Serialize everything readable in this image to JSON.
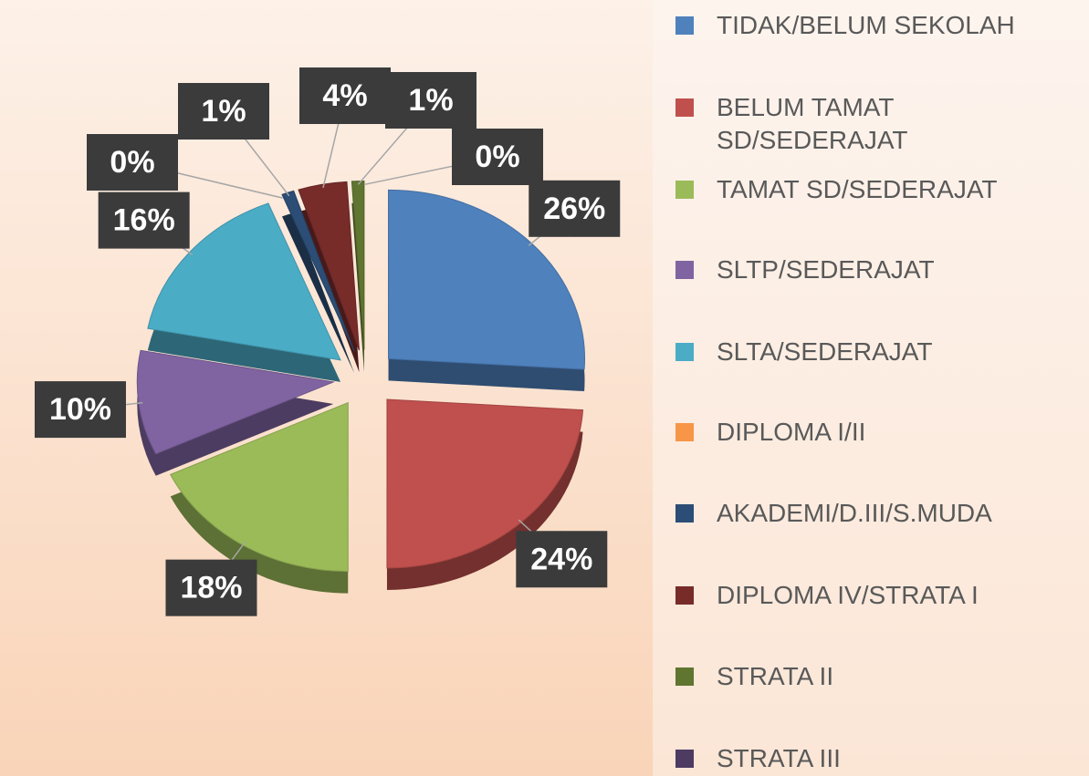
{
  "chart_data": {
    "type": "pie",
    "categories": [
      "TIDAK/BELUM SEKOLAH",
      "BELUM TAMAT SD/SEDERAJAT",
      "TAMAT SD/SEDERAJAT",
      "SLTP/SEDERAJAT",
      "SLTA/SEDERAJAT",
      "DIPLOMA I/II",
      "AKADEMI/D.III/S.MUDA",
      "DIPLOMA IV/STRATA I",
      "STRATA II",
      "STRATA III"
    ],
    "values": [
      26,
      24,
      18,
      10,
      16,
      0,
      1,
      4,
      1,
      0
    ],
    "value_labels": [
      "26%",
      "24%",
      "18%",
      "10%",
      "16%",
      "0%",
      "1%",
      "4%",
      "1%",
      "0%"
    ],
    "colors": [
      "#4f81bd",
      "#c0504d",
      "#9bbb59",
      "#8064a2",
      "#4bacc6",
      "#f79646",
      "#2c4d75",
      "#772c2a",
      "#5f7530",
      "#4d3b62"
    ],
    "legend": "right"
  }
}
